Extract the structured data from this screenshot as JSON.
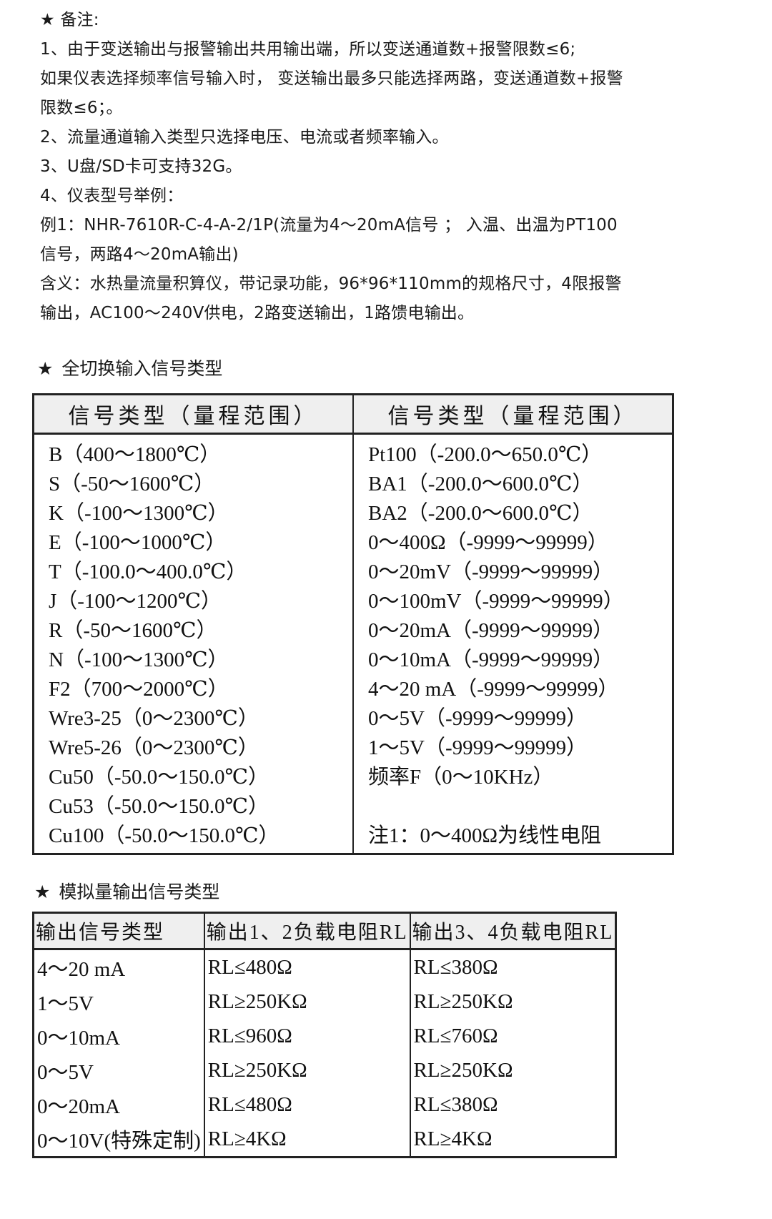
{
  "notes": {
    "title": "★ 备注:",
    "lines": [
      "1、由于变送输出与报警输出共用输出端，所以变送通道数+报警限数≤6;",
      "如果仪表选择频率信号输入时， 变送输出最多只能选择两路，变送通道数+报警",
      "限数≤6；。",
      "2、流量通道输入类型只选择电压、电流或者频率输入。",
      "3、U盘/SD卡可支持32G。",
      "4、仪表型号举例：",
      "例1：NHR-7610R-C-4-A-2/1P(流量为4～20mA信号 ； 入温、出温为PT100",
      "信号，两路4～20mA输出)",
      "含义：水热量流量积算仪，带记录功能，96*96*110mm的规格尺寸，4限报警",
      "输出，AC100～240V供电，2路变送输出，1路馈电输出。"
    ]
  },
  "input_section": {
    "title": "全切换输入信号类型",
    "headers": [
      "信号类型（量程范围）",
      "信号类型（量程范围）"
    ],
    "left": [
      "B（400～1800℃）",
      "S（-50～1600℃）",
      "K（-100～1300℃）",
      "E（-100～1000℃）",
      "T（-100.0～400.0℃）",
      "J（-100～1200℃）",
      "R（-50～1600℃）",
      "N（-100～1300℃）",
      "F2（700～2000℃）",
      "Wre3-25（0～2300℃）",
      "Wre5-26（0～2300℃）",
      "Cu50（-50.0～150.0℃）",
      "Cu53（-50.0～150.0℃）",
      "Cu100（-50.0～150.0℃）"
    ],
    "right": [
      "Pt100（-200.0～650.0℃）",
      "BA1（-200.0～600.0℃）",
      "BA2（-200.0～600.0℃）",
      "0～400Ω（-9999～99999）",
      "0～20mV（-9999～99999）",
      "0～100mV（-9999～99999）",
      "0～20mA（-9999～99999）",
      "0～10mA（-9999～99999）",
      "4～20 mA（-9999～99999）",
      "0～5V（-9999～99999）",
      "1～5V（-9999～99999）",
      "频率F（0～10KHz）",
      "",
      "注1：0～400Ω为线性电阻"
    ]
  },
  "output_section": {
    "title": "模拟量输出信号类型",
    "headers": [
      "输出信号类型",
      "输出1、2负载电阻RL",
      "输出3、4负载电阻RL"
    ],
    "rows": [
      [
        "4～20 mA",
        "RL≤480Ω",
        "RL≤380Ω"
      ],
      [
        "1～5V",
        "RL≥250KΩ",
        "RL≥250KΩ"
      ],
      [
        "0～10mA",
        "RL≤960Ω",
        "RL≤760Ω"
      ],
      [
        "0～5V",
        "RL≥250KΩ",
        "RL≥250KΩ"
      ],
      [
        "0～20mA",
        "RL≤480Ω",
        "RL≤380Ω"
      ],
      [
        "0～10V(特殊定制)",
        "RL≥4KΩ",
        "RL≥4KΩ"
      ]
    ]
  }
}
